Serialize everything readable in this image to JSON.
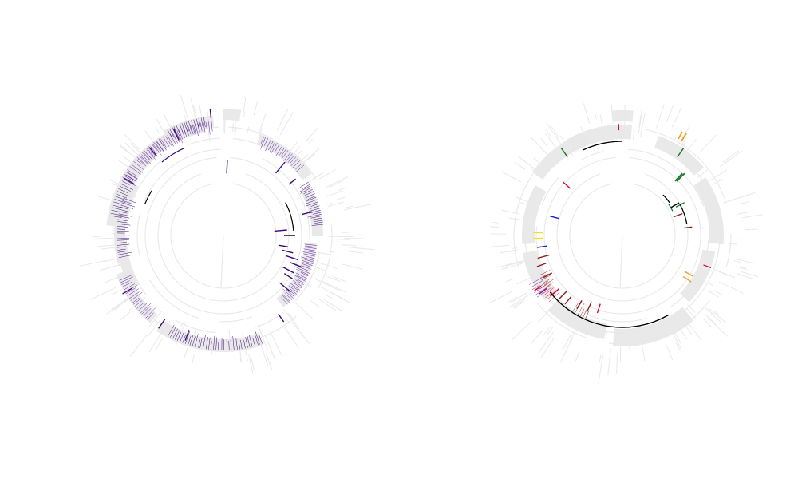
{
  "figure": {
    "panels": [
      {
        "id": "left-tree",
        "layout": "circular",
        "highlight_colors": [
          "#3d0a78",
          "#5a1aa0",
          "#000000"
        ],
        "background_branch_color": "#e8e8e8"
      },
      {
        "id": "right-tree",
        "layout": "circular",
        "highlight_colors": [
          "#e0002a",
          "#1a7a2a",
          "#f0a020",
          "#f5e000",
          "#1a1ad0",
          "#8b1a1a",
          "#7a1aa0",
          "#000000"
        ],
        "background_branch_color": "#e8e8e8"
      }
    ]
  }
}
